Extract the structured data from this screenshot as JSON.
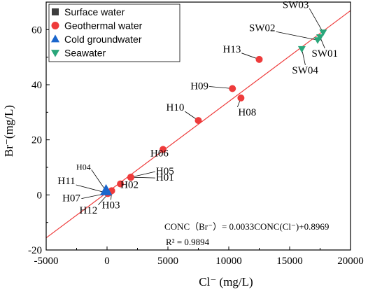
{
  "chart_data": {
    "type": "scatter",
    "xlabel": "Cl⁻ (mg/L)",
    "ylabel": "Br⁻(mg/L)",
    "xlim": [
      -5000,
      20000
    ],
    "ylim": [
      -20,
      70
    ],
    "xticks": [
      -5000,
      0,
      5000,
      10000,
      15000,
      20000
    ],
    "yticks": [
      -20,
      0,
      20,
      40,
      60
    ],
    "legend_position": "top-left",
    "series": [
      {
        "name": "Surface water",
        "marker": "square",
        "color": "#3d3d3d",
        "points": []
      },
      {
        "name": "Geothermal water",
        "marker": "circle",
        "color": "#ee3b3b",
        "points": [
          {
            "label": "H01",
            "x": 1950,
            "y": 6.4
          },
          {
            "label": "H02",
            "x": 1100,
            "y": 4.0
          },
          {
            "label": "H03",
            "x": 380,
            "y": 1.5
          },
          {
            "label": "H04",
            "x": 60,
            "y": 0.5
          },
          {
            "label": "H05",
            "x": 1950,
            "y": 6.4
          },
          {
            "label": "H06",
            "x": 4600,
            "y": 16.5
          },
          {
            "label": "H07",
            "x": 120,
            "y": 0.7
          },
          {
            "label": "H08",
            "x": 11000,
            "y": 35.2
          },
          {
            "label": "H09",
            "x": 10300,
            "y": 38.6
          },
          {
            "label": "H10",
            "x": 7500,
            "y": 27.0
          },
          {
            "label": "H11",
            "x": 80,
            "y": 0.6
          },
          {
            "label": "H12",
            "x": 200,
            "y": 0.9
          },
          {
            "label": "H13",
            "x": 12500,
            "y": 49.2
          }
        ]
      },
      {
        "name": "Cold groundwater",
        "marker": "triangle-up",
        "color": "#1a66cc",
        "points": [
          {
            "label": "",
            "x": -80,
            "y": 1.5
          }
        ]
      },
      {
        "name": "Seawater",
        "marker": "triangle-down",
        "color": "#2aa67a",
        "points": [
          {
            "label": "SW01",
            "x": 17500,
            "y": 57.3
          },
          {
            "label": "SW02",
            "x": 17300,
            "y": 56.2
          },
          {
            "label": "SW03",
            "x": 17750,
            "y": 59.0
          },
          {
            "label": "SW04",
            "x": 16000,
            "y": 53.0
          }
        ]
      }
    ],
    "fit_line": {
      "slope": 0.0033,
      "intercept": 0.8969,
      "color": "#ee3b3b"
    },
    "annotations": {
      "equation": "CONC（Br⁻）= 0.0033CONC(Cl⁻)+0.8969",
      "r2": "R² = 0.9894"
    }
  }
}
